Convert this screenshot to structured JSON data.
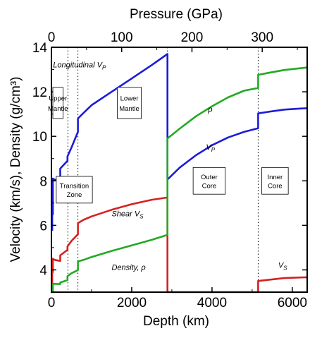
{
  "chart_data": {
    "type": "line",
    "xlabel": "Depth (km)",
    "top_xlabel": "Pressure (GPa)",
    "ylabel": "Velocity (km/s), Density (g/cm³)",
    "xlim": [
      0,
      6371
    ],
    "ylim": [
      3,
      14
    ],
    "top_xlim": [
      0,
      364
    ],
    "x_ticks": [
      0,
      2000,
      4000,
      6000
    ],
    "x_tick_labels": [
      "0",
      "2000",
      "4000",
      "6000"
    ],
    "y_ticks": [
      4,
      6,
      8,
      10,
      12,
      14
    ],
    "y_tick_labels": [
      "4",
      "6",
      "8",
      "10",
      "12",
      "14"
    ],
    "top_ticks": [
      0,
      100,
      200,
      300
    ],
    "top_tick_labels": [
      "0",
      "100",
      "200",
      "300"
    ],
    "grid": false,
    "series": [
      {
        "key": "vp",
        "color": "#1c1cd6",
        "x": [
          0,
          20,
          20,
          35,
          35,
          80,
          220,
          220,
          400,
          400,
          500,
          660,
          660,
          800,
          1000,
          1500,
          2000,
          2500,
          2891,
          2891,
          3200,
          3600,
          4000,
          4400,
          4800,
          5150,
          5150,
          5400,
          5800,
          6200,
          6371
        ],
        "y": [
          5.8,
          5.8,
          6.5,
          6.5,
          8.1,
          8.05,
          8.0,
          8.55,
          8.9,
          9.1,
          9.5,
          10.2,
          10.8,
          11.05,
          11.4,
          12.0,
          12.6,
          13.2,
          13.7,
          8.06,
          8.6,
          9.15,
          9.6,
          9.95,
          10.2,
          10.36,
          11.03,
          11.1,
          11.2,
          11.25,
          11.26
        ]
      },
      {
        "key": "vs",
        "color": "#d62020",
        "x": [
          0,
          20,
          20,
          35,
          35,
          80,
          220,
          220,
          400,
          400,
          500,
          660,
          660,
          800,
          1000,
          1500,
          2000,
          2500,
          2891,
          2891,
          5150,
          5150,
          5400,
          5800,
          6200,
          6371
        ],
        "y": [
          3.2,
          3.2,
          3.9,
          3.9,
          4.5,
          4.45,
          4.4,
          4.65,
          4.9,
          5.05,
          5.3,
          5.6,
          6.1,
          6.25,
          6.4,
          6.7,
          6.95,
          7.15,
          7.25,
          3.0,
          3.0,
          3.5,
          3.55,
          3.63,
          3.66,
          3.67
        ]
      },
      {
        "key": "rho",
        "color": "#22aa22",
        "x": [
          0,
          20,
          20,
          35,
          35,
          80,
          220,
          220,
          400,
          400,
          500,
          660,
          660,
          800,
          1000,
          1500,
          2000,
          2500,
          2891,
          2891,
          3200,
          3600,
          4000,
          4400,
          4800,
          5150,
          5150,
          5400,
          5800,
          6200,
          6371
        ],
        "y": [
          2.6,
          2.6,
          2.9,
          2.9,
          3.38,
          3.37,
          3.36,
          3.43,
          3.54,
          3.72,
          3.85,
          3.99,
          4.38,
          4.45,
          4.58,
          4.85,
          5.1,
          5.35,
          5.57,
          9.9,
          10.35,
          10.9,
          11.35,
          11.75,
          12.05,
          12.17,
          12.76,
          12.85,
          12.98,
          13.06,
          13.09
        ]
      }
    ],
    "boundaries": [
      {
        "x": 410,
        "style": "dotted"
      },
      {
        "x": 660,
        "style": "dotted"
      },
      {
        "x": 2891,
        "style": "dotted"
      },
      {
        "x": 5150,
        "style": "dotted"
      }
    ],
    "annotations": [
      {
        "key": "longitudinal",
        "text": "Longitudinal  V",
        "sub": "P",
        "x": 40,
        "y": 13.1
      },
      {
        "key": "shear",
        "text": "Shear  V",
        "sub": "S",
        "x": 1500,
        "y": 6.4
      },
      {
        "key": "density",
        "text": "Density,  ρ",
        "sub": "",
        "x": 1500,
        "y": 4.0
      },
      {
        "key": "rho_outer",
        "text": "ρ",
        "sub": "",
        "x": 3900,
        "y": 11.1
      },
      {
        "key": "vp_outer",
        "text": "V",
        "sub": "P",
        "x": 3850,
        "y": 9.4
      },
      {
        "key": "vs_inner",
        "text": "V",
        "sub": "S",
        "x": 5650,
        "y": 4.1
      }
    ],
    "regions": [
      {
        "key": "upper_mantle",
        "lines": [
          "Upper",
          "Mantle"
        ],
        "x0": -240,
        "x1": 290,
        "y0": 10.8,
        "y1": 12.2
      },
      {
        "key": "transition_zone",
        "lines": [
          "Transition",
          "Zone"
        ],
        "x0": 120,
        "x1": 1020,
        "y0": 7.0,
        "y1": 8.2
      },
      {
        "key": "lower_mantle",
        "lines": [
          "Lower",
          "Mantle"
        ],
        "x0": 1640,
        "x1": 2240,
        "y0": 10.8,
        "y1": 12.2
      },
      {
        "key": "outer_core",
        "lines": [
          "Outer",
          "Core"
        ],
        "x0": 3530,
        "x1": 4330,
        "y0": 7.4,
        "y1": 8.6
      },
      {
        "key": "inner_core",
        "lines": [
          "Inner",
          "Core"
        ],
        "x0": 5240,
        "x1": 5900,
        "y0": 7.4,
        "y1": 8.6
      }
    ]
  }
}
